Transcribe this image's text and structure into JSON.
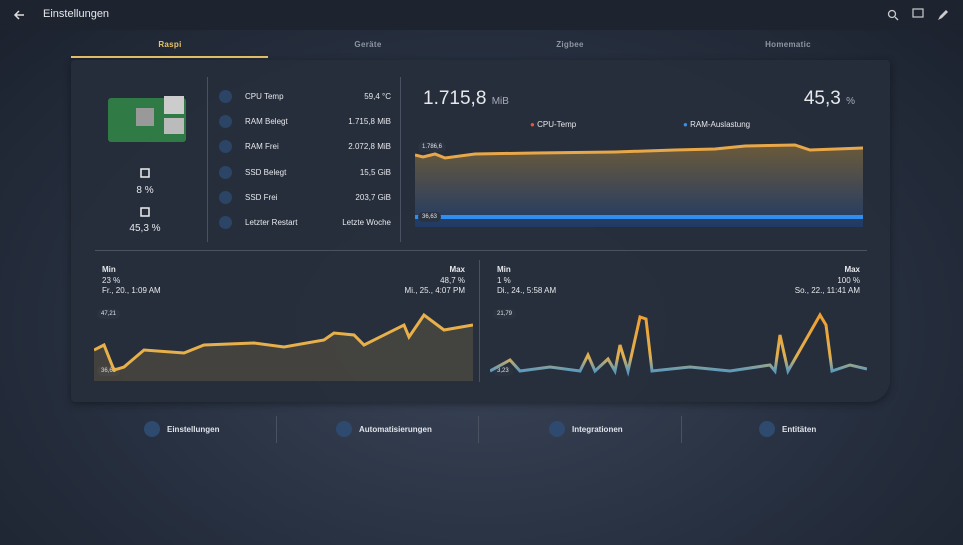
{
  "header": {
    "title": "Einstellungen"
  },
  "tabs": [
    "Raspi",
    "Geräte",
    "Zigbee",
    "Homematic"
  ],
  "device": {
    "cpu_load": "8 %",
    "ram_load": "45,3 %"
  },
  "sensors": [
    {
      "label": "CPU Temp",
      "value": "59,4 °C"
    },
    {
      "label": "RAM Belegt",
      "value": "1.715,8 MiB"
    },
    {
      "label": "RAM Frei",
      "value": "2.072,8 MiB"
    },
    {
      "label": "SSD Belegt",
      "value": "15,5 GiB"
    },
    {
      "label": "SSD Frei",
      "value": "203,7 GiB"
    },
    {
      "label": "Letzter Restart",
      "value": "Letzte Woche"
    }
  ],
  "main_chart": {
    "ram_value": "1.715,8",
    "ram_unit": "MiB",
    "cpu_value": "45,3",
    "cpu_unit": "%",
    "legend": [
      "CPU-Temp",
      "RAM-Auslastung"
    ],
    "top_label": "1.786,6",
    "bottom_label": "36,63"
  },
  "cpu_chart": {
    "min_label": "Min",
    "min_value": "23 %",
    "min_time": "Fr., 20., 1:09 AM",
    "max_label": "Max",
    "max_value": "48,7 %",
    "max_time": "Mi., 25., 4:07 PM",
    "top_label": "47,21",
    "bottom_label": "36,63"
  },
  "ram_chart": {
    "min_label": "Min",
    "min_value": "1 %",
    "min_time": "Di., 24., 5:58 AM",
    "max_label": "Max",
    "max_value": "100 %",
    "max_time": "So., 22., 11:41 AM",
    "top_label": "21,79",
    "bottom_label": "3,23"
  },
  "footer": [
    "Einstellungen",
    "Automatisierungen",
    "Integrationen",
    "Entitäten"
  ]
}
